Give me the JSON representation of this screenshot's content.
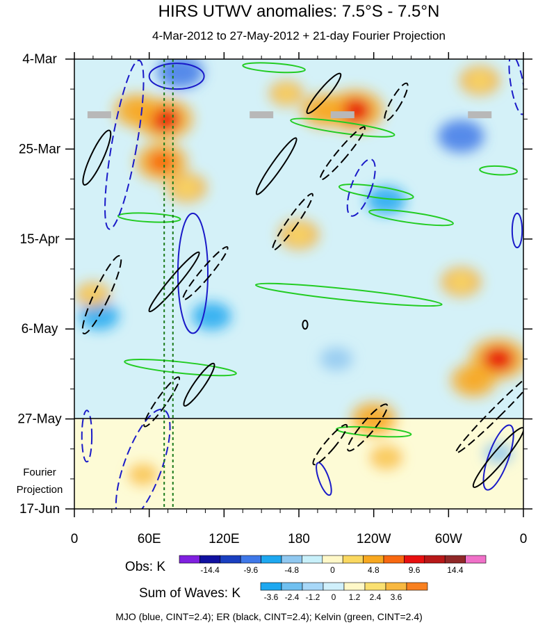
{
  "chart_data": {
    "type": "heatmap",
    "title": "HIRS UTWV anomalies: 7.5°S - 7.5°N",
    "subtitle": "4-Mar-2012 to 27-May-2012 + 21-day Fourier Projection",
    "x_ticks": [
      "0",
      "60E",
      "120E",
      "180",
      "120W",
      "60W",
      "0"
    ],
    "x_tick_values": [
      0,
      60,
      120,
      180,
      240,
      300,
      360
    ],
    "y_ticks": [
      "4-Mar",
      "25-Mar",
      "15-Apr",
      "6-May",
      "27-May",
      "17-Jun"
    ],
    "y_tick_values": [
      0,
      21,
      42,
      63,
      84,
      105
    ],
    "fourier_label_line1": "Fourier",
    "fourier_label_line2": "Projection",
    "observed_end_day": 84,
    "obs_legend": {
      "label": "Obs: K",
      "colors": [
        "#8020e0",
        "#1010a0",
        "#1a3fc0",
        "#3f78e8",
        "#1ea8f0",
        "#90c8f0",
        "#c8f0fa",
        "#fff8c8",
        "#fad860",
        "#f8a820",
        "#f86810",
        "#e81010",
        "#b81818",
        "#902828",
        "#f070c8"
      ],
      "tick_labels": [
        "-14.4",
        "-9.6",
        "-4.8",
        "0",
        "4.8",
        "9.6",
        "14.4"
      ]
    },
    "waves_legend": {
      "label": "Sum of Waves: K",
      "colors": [
        "#1ea8f0",
        "#70c0f0",
        "#a8d8f8",
        "#d0f0fc",
        "#fff8c8",
        "#fae070",
        "#f8b840",
        "#f88020"
      ],
      "tick_labels": [
        "-3.6",
        "-2.4",
        "-1.2",
        "0",
        "1.2",
        "2.4",
        "3.6"
      ]
    },
    "footer": "MJO (blue, CINT=2.4); ER (black, CINT=2.4); Kelvin (green, CINT=2.4)",
    "series": [
      {
        "name": "MJO",
        "color": "#1a1ac8"
      },
      {
        "name": "ER",
        "color": "#000000"
      },
      {
        "name": "Kelvin",
        "color": "#22cc22"
      }
    ],
    "warm_anomalies": [
      {
        "lon": 72,
        "day": 14,
        "value": 14.4
      },
      {
        "lon": 70,
        "day": 24,
        "value": 12.0
      },
      {
        "lon": 50,
        "day": 12,
        "value": 9.6
      },
      {
        "lon": 90,
        "day": 30,
        "value": 7.2
      },
      {
        "lon": 225,
        "day": 12,
        "value": 14.4
      },
      {
        "lon": 200,
        "day": 12,
        "value": 9.6
      },
      {
        "lon": 340,
        "day": 70,
        "value": 14.4
      },
      {
        "lon": 320,
        "day": 75,
        "value": 9.6
      },
      {
        "lon": 240,
        "day": 84,
        "value": 9.6
      },
      {
        "lon": 180,
        "day": 41,
        "value": 7.2
      },
      {
        "lon": 310,
        "day": 52,
        "value": 7.2
      },
      {
        "lon": 325,
        "day": 5,
        "value": 7.2
      },
      {
        "lon": 170,
        "day": 8,
        "value": 4.8
      },
      {
        "lon": 15,
        "day": 55,
        "value": 4.8
      },
      {
        "lon": 250,
        "day": 93,
        "value": 3.6
      },
      {
        "lon": 55,
        "day": 97,
        "value": 2.4
      }
    ],
    "cold_anomalies": [
      {
        "lon": 85,
        "day": 3,
        "value": -9.6
      },
      {
        "lon": 310,
        "day": 18,
        "value": -9.6
      },
      {
        "lon": 110,
        "day": 60,
        "value": -7.2
      },
      {
        "lon": 250,
        "day": 33,
        "value": -7.2
      },
      {
        "lon": 20,
        "day": 60,
        "value": -7.2
      },
      {
        "lon": 210,
        "day": 70,
        "value": -4.8
      },
      {
        "lon": 340,
        "day": 92,
        "value": -3.6
      }
    ],
    "mjo_contours": [
      {
        "lon": 82,
        "day": 4,
        "rx_deg": 22,
        "ry_days": 3,
        "rot": 0,
        "style": "solid"
      },
      {
        "lon": 40,
        "day": 20,
        "rx_deg": 10,
        "ry_days": 20,
        "rot": 10,
        "style": "dashed"
      },
      {
        "lon": 95,
        "day": 50,
        "rx_deg": 12,
        "ry_days": 14,
        "rot": 0,
        "style": "solid"
      },
      {
        "lon": 230,
        "day": 30,
        "rx_deg": 8,
        "ry_days": 7,
        "rot": 20,
        "style": "dashed"
      },
      {
        "lon": 355,
        "day": 6,
        "rx_deg": 5,
        "ry_days": 7,
        "rot": -10,
        "style": "dashed"
      },
      {
        "lon": 355,
        "day": 40,
        "rx_deg": 4,
        "ry_days": 4,
        "rot": 0,
        "style": "solid"
      },
      {
        "lon": 340,
        "day": 93,
        "rx_deg": 8,
        "ry_days": 8,
        "rot": 20,
        "style": "solid"
      },
      {
        "lon": 200,
        "day": 98,
        "rx_deg": 4,
        "ry_days": 4,
        "rot": -20,
        "style": "solid"
      },
      {
        "lon": 55,
        "day": 95,
        "rx_deg": 15,
        "ry_days": 14,
        "rot": 20,
        "style": "dashed"
      },
      {
        "lon": 10,
        "day": 88,
        "rx_deg": 4,
        "ry_days": 6,
        "rot": 0,
        "style": "dashed"
      }
    ],
    "er_contours": [
      {
        "lon": 18,
        "day": 23,
        "rx_deg": 5,
        "ry_days": 7,
        "rot": 25,
        "style": "solid"
      },
      {
        "lon": 22,
        "day": 55,
        "rx_deg": 6,
        "ry_days": 10,
        "rot": 25,
        "style": "dashed"
      },
      {
        "lon": 80,
        "day": 52,
        "rx_deg": 4,
        "ry_days": 9,
        "rot": 40,
        "style": "solid"
      },
      {
        "lon": 105,
        "day": 50,
        "rx_deg": 4,
        "ry_days": 8,
        "rot": 40,
        "style": "dashed"
      },
      {
        "lon": 162,
        "day": 25,
        "rx_deg": 4,
        "ry_days": 8,
        "rot": 35,
        "style": "solid"
      },
      {
        "lon": 175,
        "day": 38,
        "rx_deg": 4,
        "ry_days": 8,
        "rot": 35,
        "style": "dashed"
      },
      {
        "lon": 200,
        "day": 8,
        "rx_deg": 4,
        "ry_days": 6,
        "rot": 40,
        "style": "solid"
      },
      {
        "lon": 215,
        "day": 22,
        "rx_deg": 4,
        "ry_days": 8,
        "rot": 40,
        "style": "dashed"
      },
      {
        "lon": 258,
        "day": 10,
        "rx_deg": 4,
        "ry_days": 5,
        "rot": 30,
        "style": "dashed"
      },
      {
        "lon": 340,
        "day": 82,
        "rx_deg": 4,
        "ry_days": 14,
        "rot": 45,
        "style": "dashed"
      },
      {
        "lon": 340,
        "day": 93,
        "rx_deg": 5,
        "ry_days": 9,
        "rot": 40,
        "style": "solid"
      },
      {
        "lon": 100,
        "day": 76,
        "rx_deg": 4,
        "ry_days": 6,
        "rot": 35,
        "style": "solid"
      },
      {
        "lon": 70,
        "day": 80,
        "rx_deg": 4,
        "ry_days": 7,
        "rot": 35,
        "style": "dashed"
      },
      {
        "lon": 235,
        "day": 86,
        "rx_deg": 5,
        "ry_days": 7,
        "rot": 40,
        "style": "dashed"
      },
      {
        "lon": 205,
        "day": 90,
        "rx_deg": 4,
        "ry_days": 6,
        "rot": 40,
        "style": "dashed"
      },
      {
        "lon": 185,
        "day": 62,
        "rx_deg": 2,
        "ry_days": 1,
        "rot": 0,
        "style": "solid"
      }
    ],
    "kelvin_contours": [
      {
        "lon": 160,
        "day": 2,
        "rx_deg": 25,
        "ry_days": 1,
        "rot": 4,
        "style": "solid"
      },
      {
        "lon": 215,
        "day": 16,
        "rx_deg": 42,
        "ry_days": 1.3,
        "rot": 8,
        "style": "solid"
      },
      {
        "lon": 242,
        "day": 31,
        "rx_deg": 30,
        "ry_days": 1.3,
        "rot": 8,
        "style": "solid"
      },
      {
        "lon": 270,
        "day": 37,
        "rx_deg": 34,
        "ry_days": 1.2,
        "rot": 8,
        "style": "solid"
      },
      {
        "lon": 220,
        "day": 55,
        "rx_deg": 75,
        "ry_days": 1.3,
        "rot": 6,
        "style": "solid"
      },
      {
        "lon": 85,
        "day": 72,
        "rx_deg": 45,
        "ry_days": 1.3,
        "rot": 6,
        "style": "solid"
      },
      {
        "lon": 60,
        "day": 37,
        "rx_deg": 25,
        "ry_days": 1,
        "rot": 3,
        "style": "solid"
      },
      {
        "lon": 240,
        "day": 87,
        "rx_deg": 30,
        "ry_days": 1,
        "rot": 4,
        "style": "solid"
      },
      {
        "lon": 340,
        "day": 26,
        "rx_deg": 15,
        "ry_days": 1,
        "rot": 3,
        "style": "solid"
      }
    ],
    "missing_data_markers": [
      {
        "lon": 20,
        "day": 13
      },
      {
        "lon": 150,
        "day": 13
      },
      {
        "lon": 215,
        "day": 13
      },
      {
        "lon": 325,
        "day": 13
      }
    ],
    "vertical_reference_lines": [
      72,
      79
    ]
  }
}
